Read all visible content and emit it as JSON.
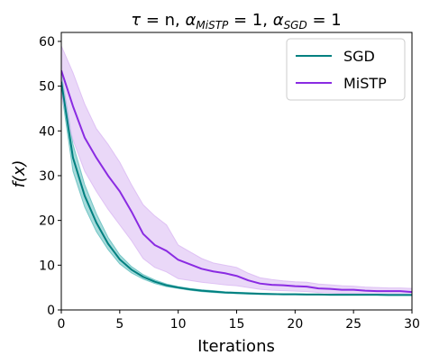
{
  "chart_data": {
    "type": "line",
    "title": "τ = n, α_MiSTP = 1, α_SGD = 1",
    "title_parts": {
      "tau": "τ",
      "eq_n": " = n, ",
      "alpha1": "α",
      "sub1": "MiSTP",
      "eq_1a": " = 1, ",
      "alpha2": "α",
      "sub2": "SGD",
      "eq_1b": " = 1"
    },
    "xlabel": "Iterations",
    "ylabel": "f(x)",
    "xlim": [
      0,
      30
    ],
    "ylim": [
      0,
      62
    ],
    "xticks": [
      0,
      5,
      10,
      15,
      20,
      25,
      30
    ],
    "yticks": [
      0,
      10,
      20,
      30,
      40,
      50,
      60
    ],
    "grid": false,
    "legend": "top-right",
    "x": [
      0,
      1,
      2,
      3,
      4,
      5,
      6,
      7,
      8,
      9,
      10,
      11,
      12,
      13,
      14,
      15,
      16,
      17,
      18,
      19,
      20,
      21,
      22,
      23,
      24,
      25,
      26,
      27,
      28,
      29,
      30
    ],
    "series": [
      {
        "name": "SGD",
        "color": "#008080",
        "fill": "#5fbdbd",
        "values": [
          51,
          34,
          25.5,
          19.5,
          14.8,
          11.3,
          9.0,
          7.4,
          6.3,
          5.5,
          5.0,
          4.6,
          4.3,
          4.1,
          3.9,
          3.8,
          3.7,
          3.6,
          3.55,
          3.5,
          3.5,
          3.45,
          3.45,
          3.4,
          3.4,
          3.4,
          3.4,
          3.4,
          3.35,
          3.35,
          3.35
        ],
        "lower": [
          49,
          31,
          23,
          17.5,
          13.5,
          10.3,
          8.3,
          6.9,
          5.9,
          5.2,
          4.8,
          4.4,
          4.1,
          3.9,
          3.75,
          3.65,
          3.55,
          3.5,
          3.45,
          3.4,
          3.4,
          3.35,
          3.35,
          3.3,
          3.3,
          3.3,
          3.3,
          3.3,
          3.25,
          3.25,
          3.25
        ],
        "upper": [
          53,
          37,
          28,
          21.5,
          16.2,
          12.3,
          9.7,
          7.9,
          6.7,
          5.8,
          5.2,
          4.8,
          4.5,
          4.3,
          4.05,
          3.95,
          3.85,
          3.75,
          3.65,
          3.6,
          3.6,
          3.55,
          3.55,
          3.5,
          3.5,
          3.5,
          3.5,
          3.5,
          3.45,
          3.45,
          3.45
        ]
      },
      {
        "name": "MiSTP",
        "color": "#8a2be2",
        "fill": "#d9b8f2",
        "values": [
          53.5,
          45.5,
          38.5,
          34,
          30,
          26.5,
          22,
          17,
          14.5,
          13.2,
          11.2,
          10.2,
          9.2,
          8.6,
          8.2,
          7.6,
          6.6,
          5.9,
          5.6,
          5.5,
          5.3,
          5.2,
          4.8,
          4.7,
          4.5,
          4.5,
          4.3,
          4.2,
          4.2,
          4.2,
          4.0
        ],
        "lower": [
          48,
          38,
          31,
          26.5,
          22.5,
          19,
          15.5,
          11.5,
          9.5,
          8.5,
          7.0,
          6.6,
          6.2,
          5.9,
          5.6,
          5.4,
          5.0,
          4.6,
          4.4,
          4.3,
          4.2,
          4.1,
          3.9,
          3.8,
          3.7,
          3.7,
          3.6,
          3.5,
          3.5,
          3.5,
          3.4
        ],
        "upper": [
          59,
          53,
          46,
          40.5,
          37,
          33,
          28,
          23.5,
          21,
          19,
          14.5,
          13,
          11.5,
          10.5,
          10.0,
          9.5,
          8.2,
          7.2,
          6.8,
          6.5,
          6.3,
          6.2,
          5.8,
          5.6,
          5.4,
          5.3,
          5.1,
          5.0,
          4.9,
          4.9,
          4.8
        ]
      }
    ]
  }
}
